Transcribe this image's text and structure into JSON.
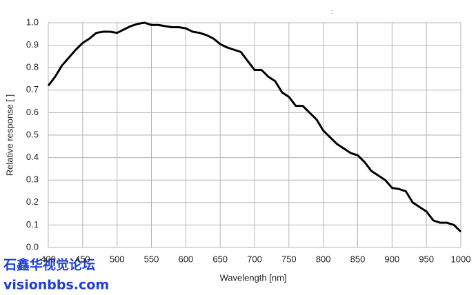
{
  "chart_data": {
    "type": "line",
    "y_label": "Relative response [ ]",
    "x_label": "Wavelength [nm]",
    "annotation": ":",
    "watermark": [
      "石鑫华视觉论坛",
      "visionbbs.com"
    ],
    "x": [
      400,
      410,
      420,
      430,
      440,
      450,
      460,
      470,
      480,
      490,
      500,
      510,
      520,
      530,
      540,
      550,
      560,
      570,
      580,
      590,
      600,
      610,
      620,
      630,
      640,
      650,
      660,
      670,
      680,
      690,
      700,
      710,
      720,
      730,
      740,
      750,
      760,
      770,
      780,
      790,
      800,
      810,
      820,
      830,
      840,
      850,
      860,
      870,
      880,
      890,
      900,
      910,
      920,
      930,
      940,
      950,
      960,
      970,
      980,
      990,
      1000
    ],
    "series": [
      {
        "color": "#000000",
        "values": [
          0.72,
          0.76,
          0.81,
          0.845,
          0.88,
          0.91,
          0.93,
          0.955,
          0.96,
          0.96,
          0.955,
          0.97,
          0.985,
          0.995,
          1.0,
          0.99,
          0.99,
          0.985,
          0.98,
          0.98,
          0.975,
          0.96,
          0.955,
          0.945,
          0.93,
          0.905,
          0.89,
          0.88,
          0.87,
          0.83,
          0.79,
          0.79,
          0.76,
          0.74,
          0.69,
          0.67,
          0.63,
          0.63,
          0.6,
          0.57,
          0.52,
          0.49,
          0.46,
          0.44,
          0.42,
          0.41,
          0.38,
          0.34,
          0.32,
          0.3,
          0.265,
          0.26,
          0.25,
          0.2,
          0.18,
          0.16,
          0.12,
          0.11,
          0.11,
          0.1,
          0.07
        ]
      }
    ],
    "xlim": [
      400,
      1000
    ],
    "xticks": [
      400,
      450,
      500,
      550,
      600,
      650,
      700,
      750,
      800,
      850,
      900,
      950,
      1000
    ],
    "ylim": [
      0,
      1
    ],
    "yticks": [
      {
        "value": 0,
        "label": "0.0"
      },
      0.1,
      0.2,
      0.3,
      0.4,
      0.5,
      0.6,
      0.7,
      0.8,
      0.9,
      {
        "value": 1,
        "label": "1.0"
      }
    ],
    "grid": true
  }
}
